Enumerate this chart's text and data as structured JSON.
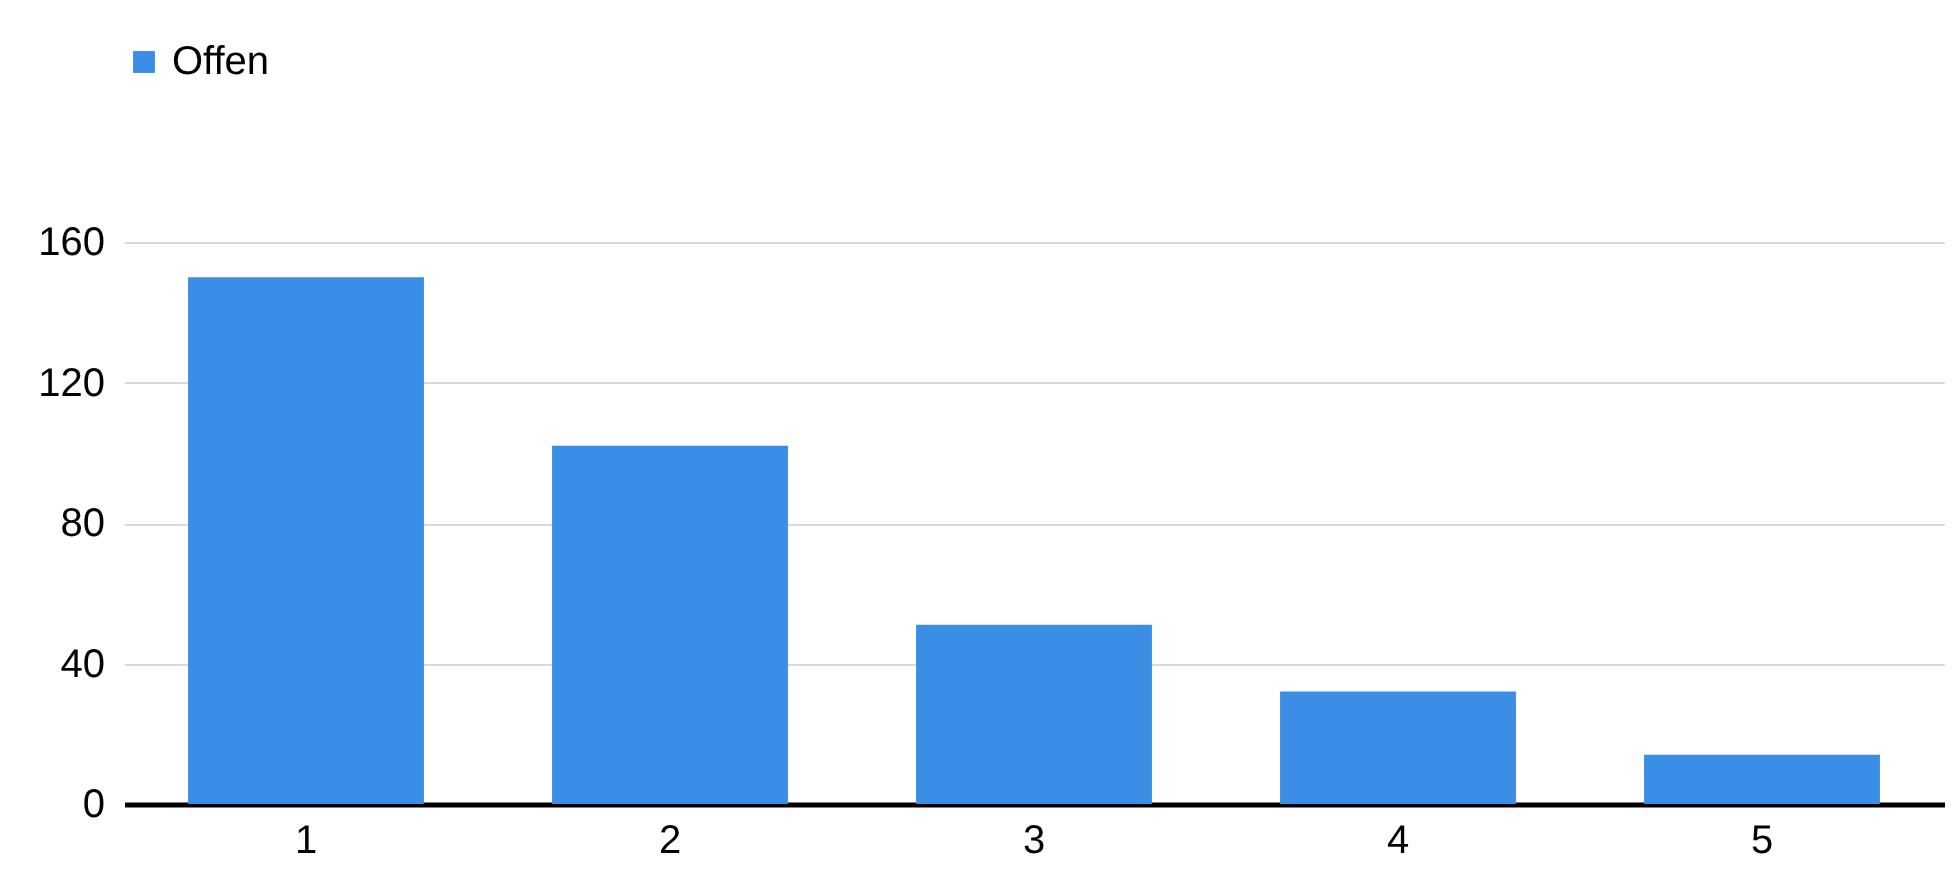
{
  "chart_data": {
    "type": "bar",
    "categories": [
      "1",
      "2",
      "3",
      "4",
      "5"
    ],
    "series": [
      {
        "name": "Offen",
        "color": "#3a8ee6",
        "values": [
          150,
          102,
          51,
          32,
          14
        ]
      }
    ],
    "ylim": [
      0,
      160
    ],
    "yticks": [
      0,
      40,
      80,
      120,
      160
    ],
    "grid": "y",
    "legend": "top"
  }
}
